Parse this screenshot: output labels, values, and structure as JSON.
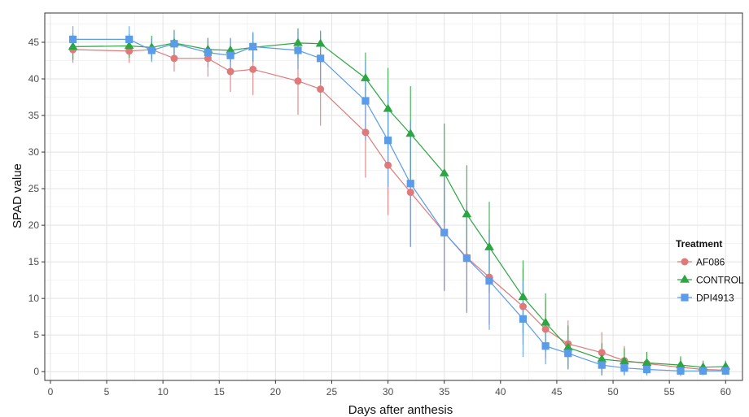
{
  "chart_data": {
    "type": "line",
    "xlabel": "Days after anthesis",
    "ylabel": "SPAD value",
    "xlim": [
      -0.5,
      61.5
    ],
    "ylim": [
      -1.2,
      49.0
    ],
    "x_ticks": [
      0,
      5,
      10,
      15,
      20,
      25,
      30,
      35,
      40,
      45,
      50,
      55,
      60
    ],
    "y_ticks": [
      0,
      5,
      10,
      15,
      20,
      25,
      30,
      35,
      40,
      45
    ],
    "grid": true,
    "legend": {
      "title": "Treatment",
      "placement": "right"
    },
    "series": [
      {
        "name": "AF086",
        "color": "#E0797A",
        "marker": "circle",
        "x": [
          2,
          7,
          9,
          11,
          14,
          16,
          18,
          22,
          24,
          28,
          30,
          32,
          35,
          37,
          39,
          42,
          44,
          46,
          49,
          51,
          53,
          56,
          58,
          60
        ],
        "y": [
          44.0,
          43.8,
          44.0,
          42.8,
          42.8,
          41.0,
          41.3,
          39.7,
          38.6,
          32.7,
          28.2,
          24.5,
          19.0,
          15.6,
          12.9,
          8.9,
          5.8,
          3.8,
          2.6,
          1.5,
          1.1,
          0.6,
          0.3,
          0.2
        ],
        "err": [
          1.8,
          1.6,
          1.4,
          1.8,
          2.5,
          2.8,
          3.5,
          4.6,
          5.0,
          6.2,
          6.8,
          7.5,
          8.0,
          7.4,
          6.5,
          5.2,
          4.0,
          3.2,
          2.8,
          2.0,
          1.6,
          1.2,
          0.8,
          0.6
        ]
      },
      {
        "name": "CONTROL",
        "color": "#2CA642",
        "marker": "triangle",
        "x": [
          2,
          7,
          9,
          11,
          14,
          16,
          18,
          22,
          24,
          28,
          30,
          32,
          35,
          37,
          39,
          42,
          44,
          46,
          49,
          51,
          53,
          56,
          58,
          60
        ],
        "y": [
          44.4,
          44.5,
          44.3,
          44.9,
          44.0,
          43.9,
          44.3,
          44.9,
          44.8,
          40.1,
          35.9,
          32.5,
          27.1,
          21.5,
          17.0,
          10.2,
          6.7,
          3.3,
          1.7,
          1.4,
          1.2,
          0.9,
          0.6,
          0.7
        ]
      },
      {
        "name": "DPI4913",
        "color": "#5A9BEA",
        "marker": "square",
        "x": [
          2,
          7,
          9,
          11,
          14,
          16,
          18,
          22,
          24,
          28,
          30,
          32,
          35,
          37,
          39,
          42,
          44,
          46,
          49,
          51,
          53,
          56,
          58,
          60
        ],
        "y": [
          45.4,
          45.4,
          43.9,
          44.8,
          43.6,
          43.2,
          44.4,
          43.9,
          42.8,
          37.0,
          31.6,
          25.7,
          19.0,
          15.5,
          12.4,
          7.2,
          3.5,
          2.5,
          0.9,
          0.5,
          0.3,
          0.1,
          0.1,
          0.1
        ]
      }
    ],
    "control_err": [
      1.8,
      1.6,
      1.6,
      1.8,
      1.6,
      1.6,
      2.0,
      2.0,
      1.8,
      3.5,
      5.6,
      6.5,
      6.8,
      6.7,
      6.2,
      5.0,
      4.0,
      3.0,
      2.2,
      1.8,
      1.5,
      1.2,
      0.9,
      0.8
    ],
    "dpi_err": [
      1.8,
      1.8,
      1.6,
      1.6,
      2.0,
      2.4,
      2.0,
      2.6,
      3.5,
      5.4,
      6.4,
      8.6,
      7.9,
      7.5,
      6.7,
      5.2,
      2.5,
      2.0,
      1.4,
      1.0,
      0.8,
      0.6,
      0.5,
      0.4
    ]
  }
}
